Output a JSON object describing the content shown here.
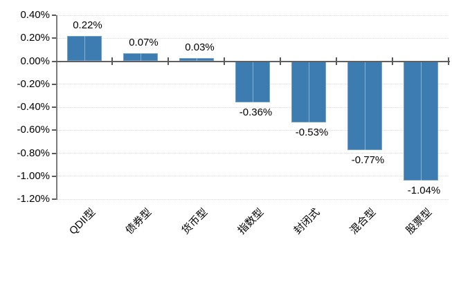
{
  "chart_data": {
    "type": "bar",
    "title": "",
    "xlabel": "",
    "ylabel": "",
    "grid": true,
    "legend": false,
    "categories": [
      "QDII型",
      "债券型",
      "货币型",
      "指数型",
      "封闭式",
      "混合型",
      "股票型"
    ],
    "values": [
      0.22,
      0.07,
      0.03,
      -0.36,
      -0.53,
      -0.77,
      -1.04
    ],
    "data_labels": [
      "0.22%",
      "0.07%",
      "0.03%",
      "-0.36%",
      "-0.53%",
      "-0.77%",
      "-1.04%"
    ],
    "y_axis": {
      "tick_labels": [
        "0.40%",
        "0.20%",
        "0.00%",
        "-0.20%",
        "-0.40%",
        "-0.60%",
        "-0.80%",
        "-1.00%",
        "-1.20%"
      ],
      "max": 0.4,
      "min": -1.2,
      "step": 0.2,
      "unit": "%"
    },
    "colors": {
      "bar_fill": "#3d7cb0",
      "bar_highlight": "#8fb3d2",
      "gridline": "#d9d9d9",
      "y_axis_line": "#7a7a7a",
      "x_axis_line": "#5f5f5f",
      "tick": "#595959",
      "label_text": "#000000",
      "background": "#ffffff"
    }
  }
}
